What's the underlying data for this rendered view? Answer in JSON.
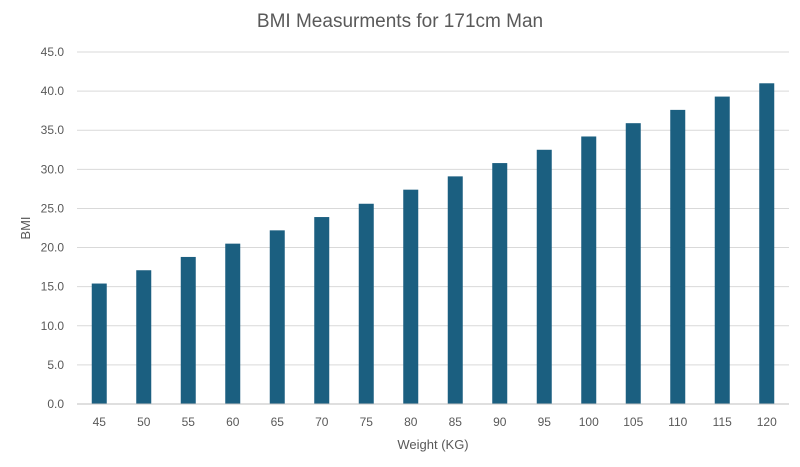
{
  "chart_data": {
    "type": "bar",
    "title": "BMI Measurments for 171cm Man",
    "xlabel": "Weight (KG)",
    "ylabel": "BMI",
    "categories": [
      "45",
      "50",
      "55",
      "60",
      "65",
      "70",
      "75",
      "80",
      "85",
      "90",
      "95",
      "100",
      "105",
      "110",
      "115",
      "120"
    ],
    "values": [
      15.4,
      17.1,
      18.8,
      20.5,
      22.2,
      23.9,
      25.6,
      27.4,
      29.1,
      30.8,
      32.5,
      34.2,
      35.9,
      37.6,
      39.3,
      41.0
    ],
    "yticks": [
      "0.0",
      "5.0",
      "10.0",
      "15.0",
      "20.0",
      "25.0",
      "30.0",
      "35.0",
      "40.0",
      "45.0"
    ],
    "ylim": [
      0,
      45
    ],
    "grid": true,
    "bar_color": "#1b5f80"
  }
}
